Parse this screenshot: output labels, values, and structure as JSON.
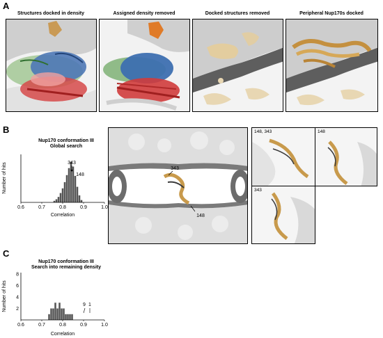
{
  "panel_a": {
    "letter": "A",
    "tiles": [
      {
        "title": "Structures docked in density"
      },
      {
        "title": "Assigned density removed"
      },
      {
        "title": "Docked structures removed"
      },
      {
        "title": "Peripheral Nup170s docked"
      }
    ]
  },
  "panel_b": {
    "letter": "B",
    "hist_title_line1": "Nup170 conformation III",
    "hist_title_line2": "Global search",
    "ylabel": "Number of hits",
    "xlabel": "Correlation",
    "xticks": [
      "0.6",
      "0.7",
      "0.8",
      "0.9",
      "1.0"
    ],
    "arrow_labels": [
      "343",
      "148"
    ],
    "center_labels": [
      "343",
      "148"
    ],
    "zoom_labels": [
      "148, 343",
      "148",
      "343"
    ]
  },
  "panel_c": {
    "letter": "C",
    "hist_title_line1": "Nup170 conformation III",
    "hist_title_line2": "Search into remaining density",
    "ylabel": "Number of hits",
    "xlabel": "Correlation",
    "xticks": [
      "0.6",
      "0.7",
      "0.8",
      "0.9",
      "1.0"
    ],
    "yticks": [
      "2",
      "4",
      "6",
      "8"
    ],
    "arrow_labels": [
      "9",
      "1"
    ]
  },
  "chart_data": [
    {
      "type": "bar",
      "title": "Nup170 conformation III Global search",
      "xlabel": "Correlation",
      "ylabel": "Number of hits",
      "xlim": [
        0.6,
        1.0
      ],
      "x": [
        0.76,
        0.77,
        0.78,
        0.79,
        0.8,
        0.81,
        0.82,
        0.83,
        0.84,
        0.85,
        0.86,
        0.87,
        0.88,
        0.89
      ],
      "values": [
        2,
        4,
        7,
        12,
        18,
        26,
        35,
        44,
        52,
        46,
        34,
        20,
        9,
        3
      ]
    },
    {
      "type": "bar",
      "title": "Nup170 conformation III Search into remaining density",
      "xlabel": "Correlation",
      "ylabel": "Number of hits",
      "xlim": [
        0.6,
        1.0
      ],
      "ylim": [
        0,
        8
      ],
      "x": [
        0.735,
        0.745,
        0.755,
        0.765,
        0.775,
        0.785,
        0.795,
        0.805,
        0.815,
        0.825,
        0.835,
        0.845
      ],
      "values": [
        1,
        2,
        2,
        3,
        2,
        3,
        2,
        2,
        1,
        1,
        1,
        1
      ]
    }
  ]
}
